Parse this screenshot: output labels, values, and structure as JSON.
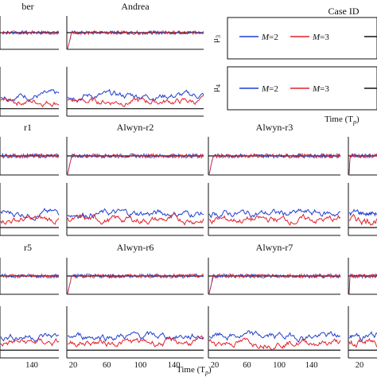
{
  "chart_data": {
    "type": "line",
    "panels": [
      {
        "title": "ber",
        "col": 0,
        "row": 0
      },
      {
        "title": "Andrea",
        "col": 1,
        "row": 0
      },
      {
        "title": "r1",
        "col": 0,
        "row": 1
      },
      {
        "title": "Alwyn-r2",
        "col": 1,
        "row": 1
      },
      {
        "title": "Alwyn-r3",
        "col": 2,
        "row": 1
      },
      {
        "title": "",
        "col": 3,
        "row": 1
      },
      {
        "title": "r5",
        "col": 0,
        "row": 2
      },
      {
        "title": "Alwyn-r6",
        "col": 1,
        "row": 2
      },
      {
        "title": "Alwyn-r7",
        "col": 2,
        "row": 2
      },
      {
        "title": "",
        "col": 3,
        "row": 2
      }
    ],
    "series": [
      {
        "name": "M=2",
        "color": "#1f3fd1",
        "mu3_level": 0.5,
        "mu4_level": 0.42
      },
      {
        "name": "M=3",
        "color": "#e0202a",
        "mu3_level": 0.5,
        "mu4_level": 0.3
      }
    ],
    "reference_color": "#111111",
    "reference": {
      "mu3_level": 0.5,
      "mu4_level": 0.15
    },
    "x_ticks_left": [
      "140"
    ],
    "x_ticks_bottom": [
      "20",
      "60",
      "100",
      "140"
    ],
    "x_ticks_narrow": [
      "20"
    ],
    "xlabel": "Time (T",
    "xlabel_sub": "p",
    "xlabel_close": ")",
    "legend": {
      "title": "Case ID",
      "rows": [
        {
          "ylabel": "μ",
          "ysub": "3",
          "items": [
            "M",
            "=2",
            "M",
            "=3"
          ]
        },
        {
          "ylabel": "μ",
          "ysub": "4",
          "items": [
            "M",
            "=2",
            "M",
            "=3"
          ]
        }
      ]
    }
  }
}
